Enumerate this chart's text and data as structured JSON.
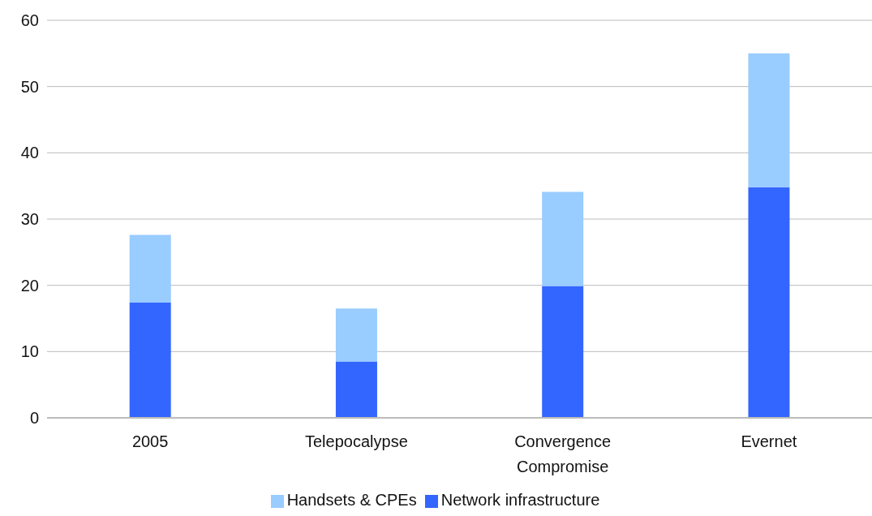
{
  "chart_data": {
    "type": "bar",
    "stacked": true,
    "categories": [
      "2005",
      "Telepocalypse",
      "Convergence Compromise",
      "Evernet"
    ],
    "series": [
      {
        "name": "Network infrastructure",
        "color": "#3366ff",
        "values": [
          17.4,
          8.5,
          19.9,
          34.8
        ]
      },
      {
        "name": "Handsets & CPEs",
        "color": "#99ccff",
        "values": [
          10.2,
          8.0,
          14.2,
          20.2
        ]
      }
    ],
    "ylim": [
      0,
      60
    ],
    "yticks": [
      0,
      10,
      20,
      30,
      40,
      50,
      60
    ],
    "grid": "y",
    "legend": "bottom"
  }
}
